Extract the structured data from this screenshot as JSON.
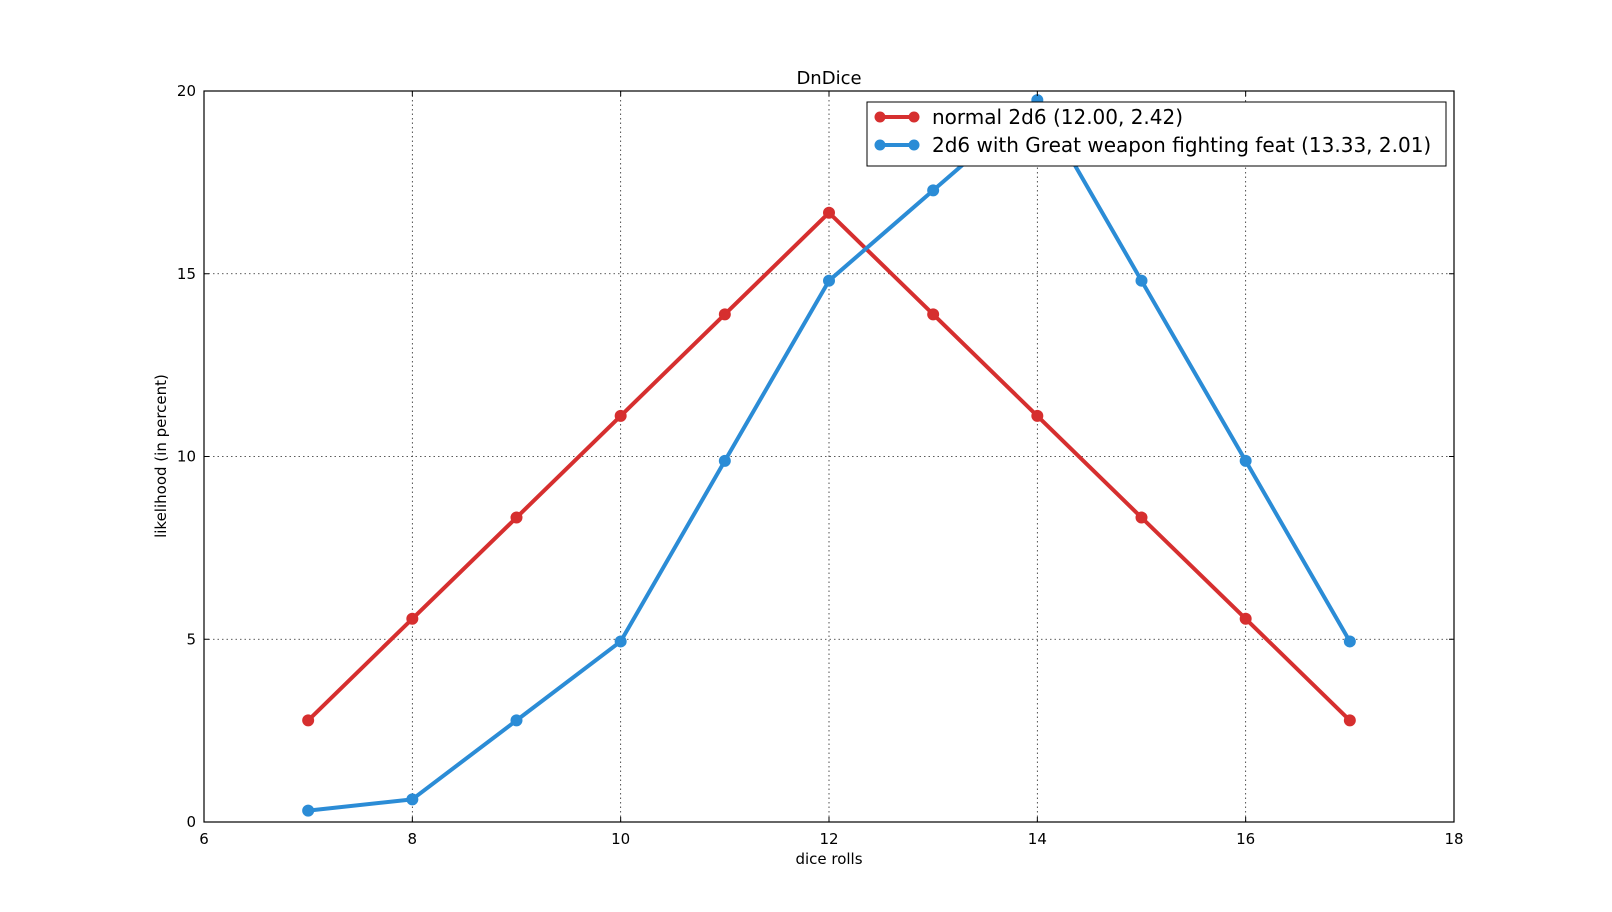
{
  "chart_data": {
    "type": "line",
    "title": "DnDice",
    "xlabel": "dice rolls",
    "ylabel": "likelihood (in percent)",
    "xlim": [
      6,
      18
    ],
    "ylim": [
      0,
      20
    ],
    "xticks": [
      6,
      8,
      10,
      12,
      14,
      16,
      18
    ],
    "yticks": [
      0,
      5,
      10,
      15,
      20
    ],
    "grid": true,
    "legend_position": "top-right",
    "series": [
      {
        "name": "normal 2d6 (12.00, 2.42)",
        "color": "#d62f2f",
        "x": [
          7,
          8,
          9,
          10,
          11,
          12,
          13,
          14,
          15,
          16,
          17
        ],
        "y": [
          2.78,
          5.56,
          8.33,
          11.11,
          13.89,
          16.67,
          13.89,
          11.11,
          8.33,
          5.56,
          2.78
        ]
      },
      {
        "name": "2d6 with Great weapon fighting feat (13.33, 2.01)",
        "color": "#2b8cd6",
        "x": [
          7,
          8,
          9,
          10,
          11,
          12,
          13,
          14,
          15,
          16,
          17
        ],
        "y": [
          0.31,
          0.62,
          2.78,
          4.94,
          9.88,
          14.81,
          17.28,
          19.75,
          14.81,
          9.88,
          4.94
        ]
      }
    ]
  }
}
